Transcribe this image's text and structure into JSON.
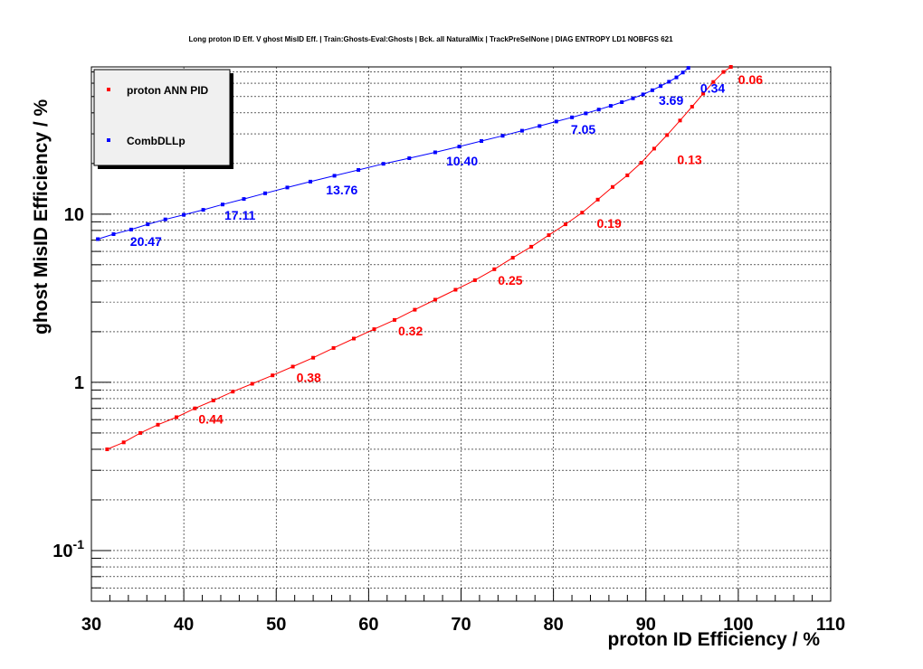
{
  "chart_data": {
    "type": "line",
    "title": "Long proton ID Eff. V ghost MisID Eff. | Train:Ghosts-Eval:Ghosts | Bck. all NaturalMix | TrackPreSelNone | DIAG ENTROPY LD1 NOBFGS 621",
    "xlabel": "proton ID Efficiency / %",
    "ylabel": "ghost MisID Efficiency / %",
    "xlim": [
      30,
      110
    ],
    "ylim": [
      0.05,
      75
    ],
    "yscale": "log",
    "grid": true,
    "legend_position": "top-left",
    "x_ticks": [
      {
        "value": 30,
        "label": "30"
      },
      {
        "value": 40,
        "label": "40"
      },
      {
        "value": 50,
        "label": "50"
      },
      {
        "value": 60,
        "label": "60"
      },
      {
        "value": 70,
        "label": "70"
      },
      {
        "value": 80,
        "label": "80"
      },
      {
        "value": 90,
        "label": "90"
      },
      {
        "value": 100,
        "label": "100"
      },
      {
        "value": 110,
        "label": "110"
      }
    ],
    "y_ticks": [
      {
        "value": 0.1,
        "base": "10",
        "exp": "-1"
      },
      {
        "value": 1,
        "base": "1",
        "exp": ""
      },
      {
        "value": 10,
        "base": "10",
        "exp": ""
      }
    ],
    "series": [
      {
        "name": "proton ANN PID",
        "color": "#ff0000",
        "x": [
          31.7,
          33.5,
          35.3,
          37.2,
          39.2,
          41.2,
          43.2,
          45.3,
          47.4,
          49.6,
          51.8,
          54.0,
          56.2,
          58.4,
          60.6,
          62.8,
          65.0,
          67.2,
          69.4,
          71.5,
          73.6,
          75.6,
          77.6,
          79.5,
          81.3,
          83.1,
          84.8,
          86.4,
          88.0,
          89.5,
          90.9,
          92.3,
          93.7,
          95.0,
          96.2,
          97.3,
          98.4,
          99.2,
          99.7
        ],
        "y": [
          0.4,
          0.44,
          0.5,
          0.56,
          0.62,
          0.7,
          0.78,
          0.88,
          0.98,
          1.1,
          1.24,
          1.4,
          1.6,
          1.82,
          2.07,
          2.35,
          2.7,
          3.1,
          3.55,
          4.05,
          4.7,
          5.5,
          6.4,
          7.5,
          8.7,
          10.2,
          12.2,
          14.5,
          17.0,
          20.2,
          24.5,
          29.5,
          36.0,
          43.5,
          52.0,
          61.0,
          70.0,
          75.0,
          78.0
        ],
        "labels": [
          {
            "x": 41.2,
            "y": 0.7,
            "text": "0.44"
          },
          {
            "x": 51.8,
            "y": 1.24,
            "text": "0.38"
          },
          {
            "x": 62.8,
            "y": 2.35,
            "text": "0.32"
          },
          {
            "x": 73.6,
            "y": 4.7,
            "text": "0.25"
          },
          {
            "x": 84.3,
            "y": 10.2,
            "text": "0.19"
          },
          {
            "x": 93.0,
            "y": 24.5,
            "text": "0.13"
          },
          {
            "x": 99.6,
            "y": 73.0,
            "text": "0.06"
          }
        ]
      },
      {
        "name": "CombDLLp",
        "color": "#0000ff",
        "x": [
          30.7,
          32.4,
          34.3,
          36.1,
          38.0,
          40.0,
          42.1,
          44.2,
          46.5,
          48.8,
          51.2,
          53.7,
          56.3,
          58.9,
          61.6,
          64.4,
          67.2,
          69.8,
          72.2,
          74.5,
          76.6,
          78.5,
          80.3,
          82.0,
          83.5,
          84.9,
          86.2,
          87.4,
          88.6,
          89.7,
          90.7,
          91.6,
          92.5,
          93.3,
          94.0,
          94.6,
          95.0
        ],
        "y": [
          7.1,
          7.6,
          8.1,
          8.7,
          9.3,
          9.9,
          10.6,
          11.4,
          12.3,
          13.3,
          14.4,
          15.6,
          16.9,
          18.3,
          19.9,
          21.5,
          23.3,
          25.2,
          27.2,
          29.2,
          31.3,
          33.4,
          35.5,
          37.6,
          39.7,
          41.8,
          44.0,
          46.3,
          48.8,
          51.5,
          54.5,
          57.7,
          61.2,
          65.0,
          69.5,
          74.0,
          78.0
        ],
        "labels": [
          {
            "x": 33.8,
            "y": 8.0,
            "text": "20.47"
          },
          {
            "x": 44.0,
            "y": 11.4,
            "text": "17.11"
          },
          {
            "x": 55.0,
            "y": 16.2,
            "text": "13.76"
          },
          {
            "x": 68.0,
            "y": 24.0,
            "text": "10.40"
          },
          {
            "x": 81.5,
            "y": 37.0,
            "text": "7.05"
          },
          {
            "x": 91.0,
            "y": 55.0,
            "text": "3.69"
          },
          {
            "x": 95.5,
            "y": 65.0,
            "text": "0.34"
          }
        ]
      }
    ]
  }
}
